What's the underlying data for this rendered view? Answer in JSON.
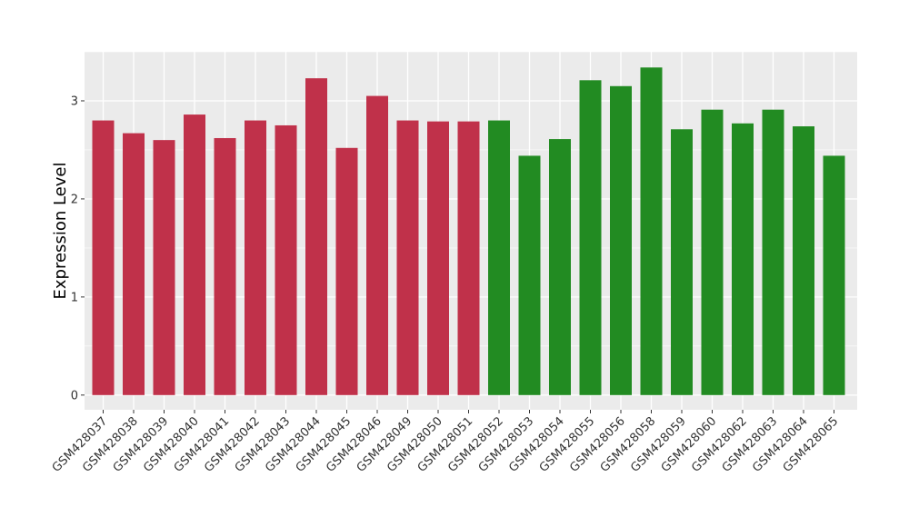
{
  "chart_data": {
    "type": "bar",
    "title": "",
    "xlabel": "",
    "ylabel": "Expression Level",
    "ylim": [
      -0.15,
      3.5
    ],
    "yticks": [
      0,
      1,
      2,
      3
    ],
    "grid": true,
    "legend": "none",
    "categories": [
      "GSM428037",
      "GSM428038",
      "GSM428039",
      "GSM428040",
      "GSM428041",
      "GSM428042",
      "GSM428043",
      "GSM428044",
      "GSM428045",
      "GSM428046",
      "GSM428049",
      "GSM428050",
      "GSM428051",
      "GSM428052",
      "GSM428053",
      "GSM428054",
      "GSM428055",
      "GSM428056",
      "GSM428058",
      "GSM428059",
      "GSM428060",
      "GSM428062",
      "GSM428063",
      "GSM428064",
      "GSM428065"
    ],
    "values": [
      2.8,
      2.67,
      2.6,
      2.86,
      2.62,
      2.8,
      2.75,
      3.23,
      2.52,
      3.05,
      2.8,
      2.79,
      2.79,
      2.8,
      2.44,
      2.61,
      3.21,
      3.15,
      3.34,
      2.71,
      2.91,
      2.77,
      2.91,
      2.74,
      2.44
    ],
    "groups": [
      0,
      0,
      0,
      0,
      0,
      0,
      0,
      0,
      0,
      0,
      0,
      0,
      0,
      1,
      1,
      1,
      1,
      1,
      1,
      1,
      1,
      1,
      1,
      1,
      1
    ],
    "colors": {
      "group0": "#c0314a",
      "group1": "#228b22",
      "panel": "#ebebeb",
      "grid": "#ffffff"
    }
  }
}
